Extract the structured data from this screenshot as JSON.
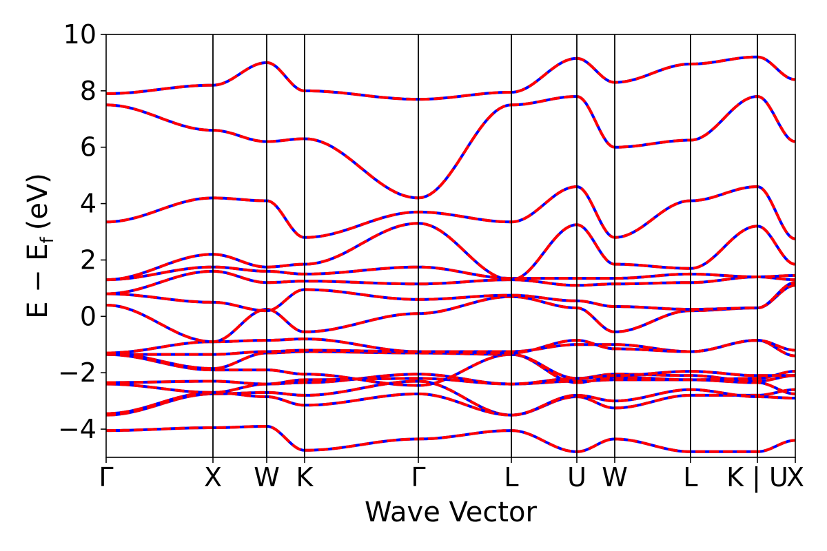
{
  "chart_data": {
    "type": "line",
    "title": "",
    "xlabel": "Wave Vector",
    "ylabel": "E − E",
    "ylabel_sub": "f",
    "ylabel_unit": "(eV)",
    "ylim": [
      -5,
      10
    ],
    "yticks": [
      -4,
      -2,
      0,
      2,
      4,
      6,
      8,
      10
    ],
    "ytick_labels": [
      "−4",
      "−2",
      "0",
      "2",
      "4",
      "6",
      "8",
      "10"
    ],
    "grid": false,
    "legend": "none",
    "kpath": [
      {
        "label": "Γ",
        "x": 0.0
      },
      {
        "label": "X",
        "x": 0.155
      },
      {
        "label": "W",
        "x": 0.233
      },
      {
        "label": "K",
        "x": 0.288
      },
      {
        "label": "Γ",
        "x": 0.453
      },
      {
        "label": "L",
        "x": 0.588
      },
      {
        "label": "U",
        "x": 0.683
      },
      {
        "label": "W",
        "x": 0.738
      },
      {
        "label": "L",
        "x": 0.848
      },
      {
        "label": "K | U",
        "x": 0.945
      },
      {
        "label": "X",
        "x": 1.0
      }
    ],
    "series_colors": [
      "#0000ff",
      "#ff0000"
    ],
    "bands": [
      [
        -4.05,
        -3.95,
        -3.9,
        -4.75,
        -4.35,
        -4.05,
        -4.8,
        -4.35,
        -4.8,
        -4.8,
        -4.4,
        -3.9
      ],
      [
        -3.5,
        -2.75,
        -2.7,
        -2.8,
        -2.3,
        -3.5,
        -2.85,
        -3.25,
        -2.8,
        -2.8,
        -2.6,
        -2.75
      ],
      [
        -3.45,
        -2.7,
        -2.85,
        -3.15,
        -2.75,
        -3.5,
        -2.8,
        -3.0,
        -2.6,
        -2.85,
        -2.9,
        -2.8
      ],
      [
        -2.4,
        -2.7,
        -2.4,
        -2.35,
        -2.05,
        -2.4,
        -2.3,
        -2.25,
        -2.25,
        -2.35,
        -2.75,
        -2.65
      ],
      [
        -2.35,
        -2.3,
        -2.4,
        -2.25,
        -2.2,
        -2.4,
        -2.2,
        -2.05,
        -2.1,
        -2.3,
        -2.1,
        -1.85
      ],
      [
        -1.35,
        -1.9,
        -1.9,
        -2.05,
        -2.45,
        -1.35,
        -2.35,
        -2.15,
        -2.25,
        -2.2,
        -1.95,
        -1.9
      ],
      [
        -1.3,
        -1.85,
        -1.3,
        -1.25,
        -1.3,
        -1.35,
        -2.2,
        -2.1,
        -1.95,
        -2.1,
        -2.1,
        -2.1
      ],
      [
        -1.35,
        -1.35,
        -1.25,
        -1.2,
        -1.25,
        -1.25,
        -1.0,
        -1.0,
        -1.25,
        -0.85,
        -1.4,
        -1.35
      ],
      [
        -1.3,
        -0.9,
        -0.85,
        -0.8,
        -1.25,
        -1.3,
        -0.85,
        -1.15,
        -1.25,
        -0.85,
        -1.2,
        -0.9
      ],
      [
        0.4,
        -0.9,
        0.25,
        -0.55,
        0.1,
        0.7,
        0.3,
        -0.55,
        0.2,
        0.3,
        1.1,
        0.55
      ],
      [
        0.8,
        0.5,
        0.2,
        0.95,
        0.6,
        0.75,
        0.55,
        0.35,
        0.25,
        0.3,
        1.2,
        1.65
      ],
      [
        0.8,
        1.6,
        1.2,
        1.25,
        1.15,
        1.3,
        1.1,
        1.15,
        1.2,
        1.4,
        1.3,
        1.5
      ],
      [
        1.3,
        1.75,
        1.6,
        1.5,
        1.75,
        1.35,
        1.35,
        1.35,
        1.5,
        1.4,
        1.45,
        1.5
      ],
      [
        1.3,
        2.2,
        1.75,
        1.85,
        3.3,
        1.3,
        3.25,
        1.85,
        1.7,
        3.2,
        1.85,
        2.25
      ],
      [
        3.35,
        4.2,
        4.1,
        2.8,
        3.7,
        3.35,
        4.6,
        2.8,
        4.1,
        4.6,
        2.75,
        6.6
      ],
      [
        7.5,
        6.6,
        6.2,
        6.3,
        4.2,
        7.5,
        7.8,
        6.0,
        6.25,
        7.8,
        6.2,
        7.45
      ],
      [
        7.9,
        8.2,
        9.0,
        8.0,
        7.7,
        7.95,
        9.15,
        8.3,
        8.95,
        9.2,
        8.4,
        8.25
      ]
    ]
  }
}
